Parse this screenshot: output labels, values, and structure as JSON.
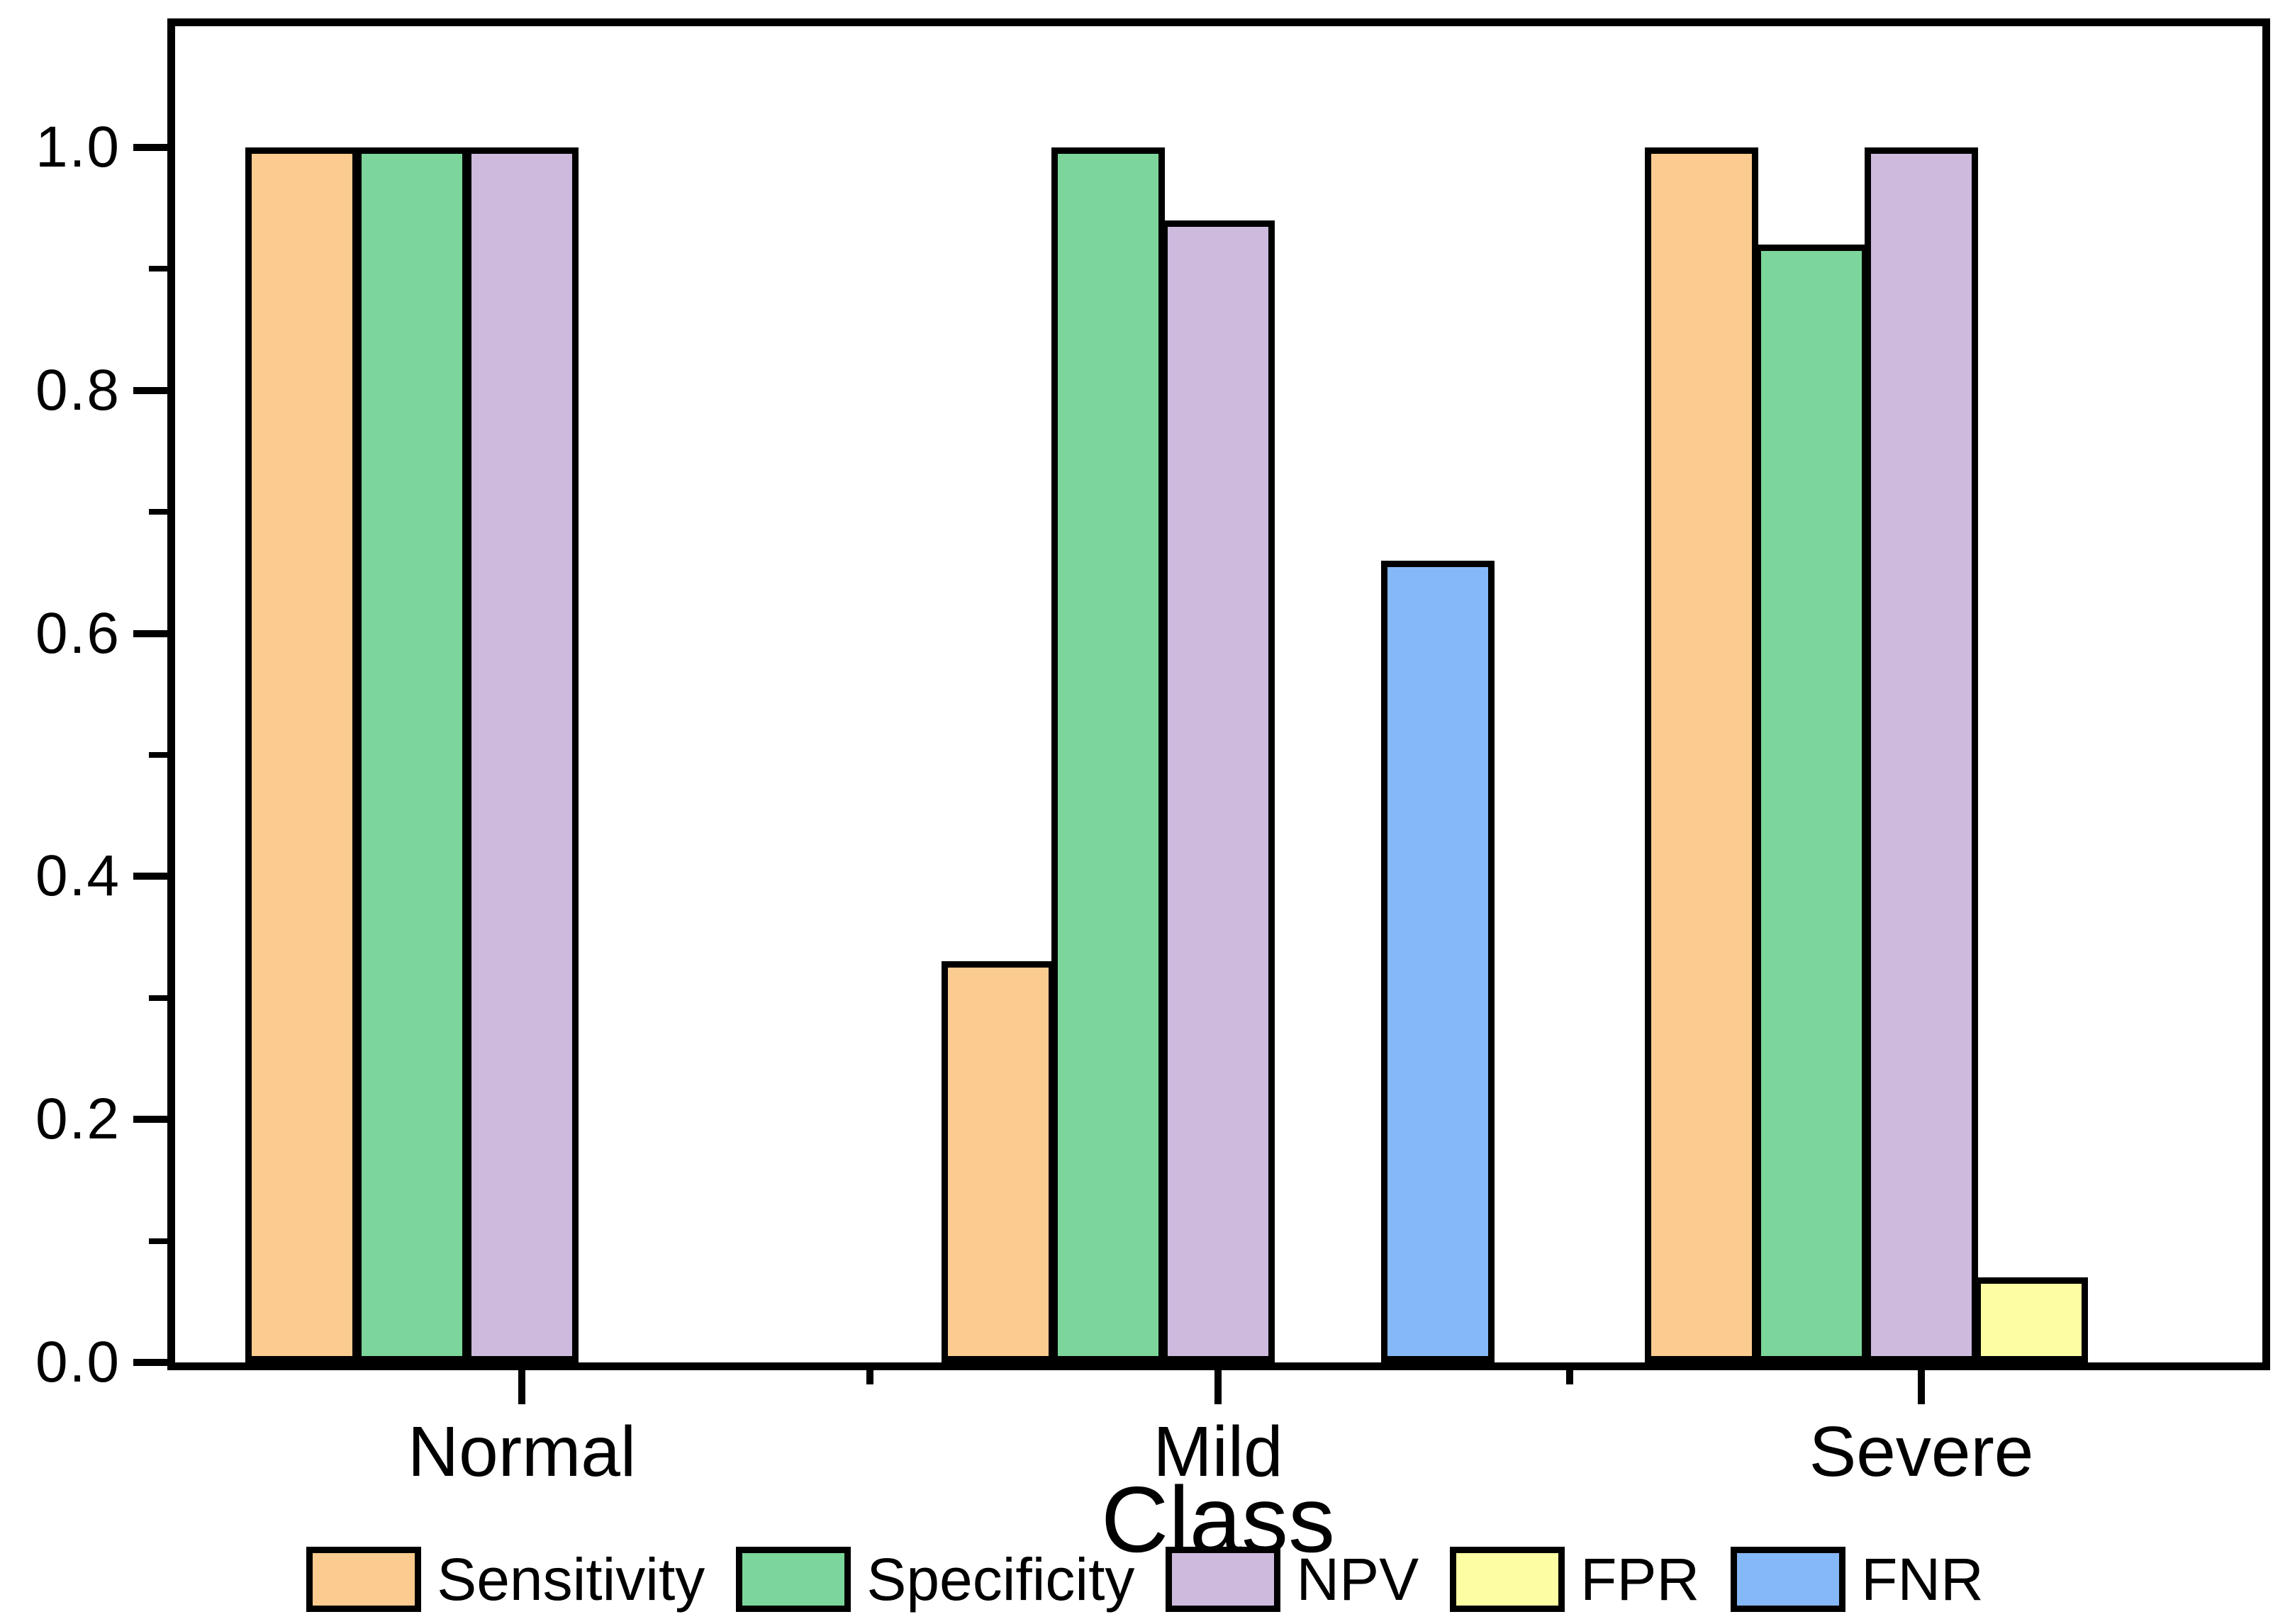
{
  "chart_data": {
    "type": "bar",
    "title": "",
    "xlabel": "Class",
    "ylabel": "",
    "categories": [
      "Normal",
      "Mild",
      "Severe"
    ],
    "series": [
      {
        "name": "Sensitivity",
        "color": "#FBCB8F",
        "values": [
          1.0,
          0.33,
          1.0
        ]
      },
      {
        "name": "Specificity",
        "color": "#7CD59A",
        "values": [
          1.0,
          1.0,
          0.92
        ]
      },
      {
        "name": "NPV",
        "color": "#CEBADD",
        "values": [
          1.0,
          0.94,
          1.0
        ]
      },
      {
        "name": "FPR",
        "color": "#FDFDA4",
        "values": [
          0.0,
          0.0,
          0.07
        ]
      },
      {
        "name": "FNR",
        "color": "#85B8F6",
        "values": [
          0.0,
          0.66,
          0.0
        ]
      }
    ],
    "ylim": [
      0,
      1.1
    ],
    "yticks_major": [
      0.0,
      0.2,
      0.4,
      0.6,
      0.8,
      1.0
    ],
    "yticks_minor": [
      0.1,
      0.3,
      0.5,
      0.7,
      0.9
    ],
    "grid": false,
    "bar_edge_color": "#000000",
    "legend_position": "bottom"
  }
}
